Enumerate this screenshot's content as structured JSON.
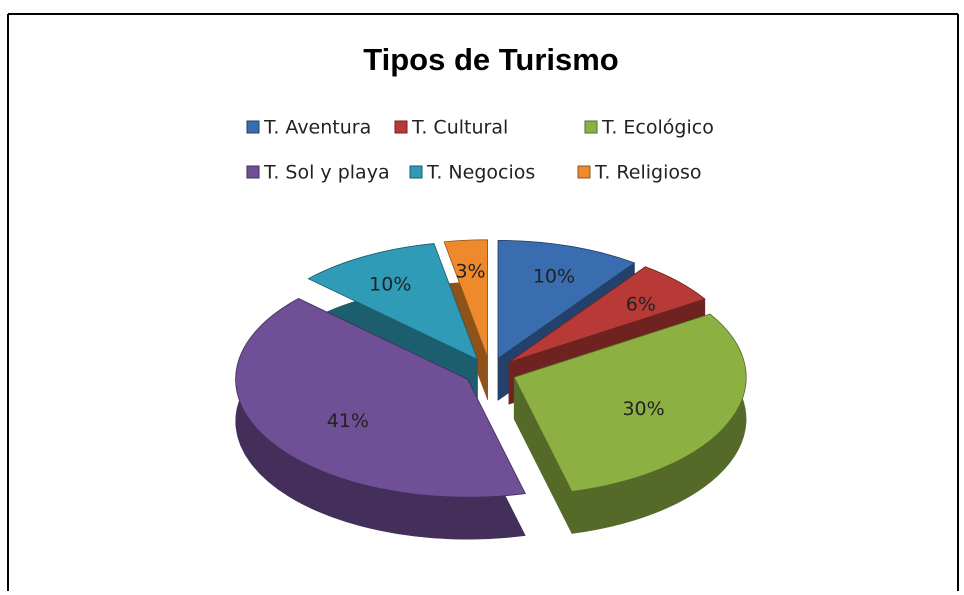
{
  "chart_data": {
    "type": "pie",
    "title": "Tipos de Turismo",
    "categories": [
      "T. Aventura",
      "T. Cultural",
      "T. Ecológico",
      "T. Sol y playa",
      "T. Negocios",
      "T. Religioso"
    ],
    "values": [
      10,
      6,
      30,
      41,
      10,
      3
    ],
    "value_labels": [
      "10%",
      "6%",
      "30%",
      "41%",
      "10%",
      "3%"
    ],
    "colors": [
      "#3a6db0",
      "#b83a37",
      "#8db043",
      "#6f4f96",
      "#2f9bb7",
      "#ee8a2c"
    ],
    "legend": "top"
  }
}
